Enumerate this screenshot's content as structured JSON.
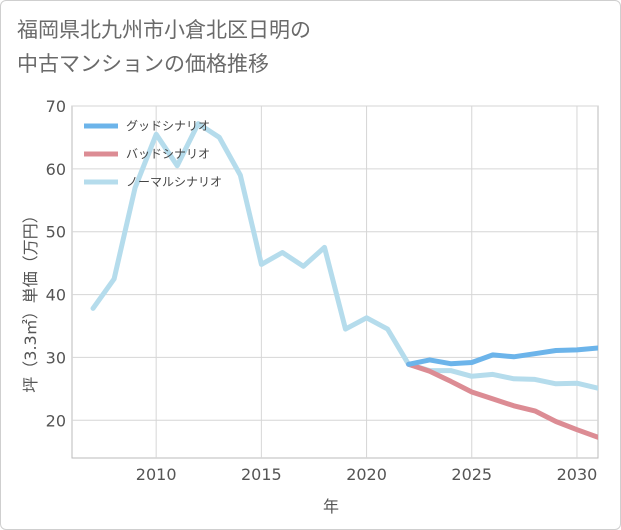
{
  "title_lines": [
    "福岡県北九州市小倉北区日明の",
    "中古マンションの価格推移"
  ],
  "chart_data": {
    "type": "line",
    "title": "福岡県北九州市小倉北区日明の中古マンションの価格推移",
    "xlabel": "年",
    "ylabel": "坪（3.3㎡）単価（万円）",
    "xlim": [
      2006,
      2031
    ],
    "ylim": [
      14,
      70
    ],
    "xticks": [
      2010,
      2015,
      2020,
      2025,
      2030
    ],
    "yticks": [
      20,
      30,
      40,
      50,
      60,
      70
    ],
    "legend_position": "top-left",
    "series": [
      {
        "name": "グッドシナリオ",
        "color": "#6cb4ea",
        "x": [
          2022,
          2023,
          2024,
          2025,
          2026,
          2027,
          2028,
          2029,
          2030,
          2031
        ],
        "values": [
          28.9,
          29.6,
          29.0,
          29.2,
          30.4,
          30.1,
          30.6,
          31.1,
          31.2,
          31.5
        ]
      },
      {
        "name": "バッドシナリオ",
        "color": "#dc8c94",
        "x": [
          2022,
          2023,
          2024,
          2025,
          2026,
          2027,
          2028,
          2029,
          2030,
          2031
        ],
        "values": [
          28.9,
          27.8,
          26.2,
          24.5,
          23.4,
          22.3,
          21.5,
          19.8,
          18.5,
          17.3
        ]
      },
      {
        "name": "ノーマルシナリオ",
        "color": "#b5dcec",
        "x": [
          2007,
          2008,
          2009,
          2010,
          2011,
          2012,
          2013,
          2014,
          2015,
          2016,
          2017,
          2018,
          2019,
          2020,
          2021,
          2022,
          2023,
          2024,
          2025,
          2026,
          2027,
          2028,
          2029,
          2030,
          2031
        ],
        "values": [
          37.8,
          42.5,
          57.0,
          65.5,
          60.5,
          67.2,
          65.0,
          59.0,
          44.8,
          46.7,
          44.5,
          47.5,
          34.5,
          36.3,
          34.5,
          28.9,
          27.9,
          27.9,
          27.0,
          27.3,
          26.6,
          26.5,
          25.8,
          25.9,
          25.1
        ]
      }
    ]
  }
}
